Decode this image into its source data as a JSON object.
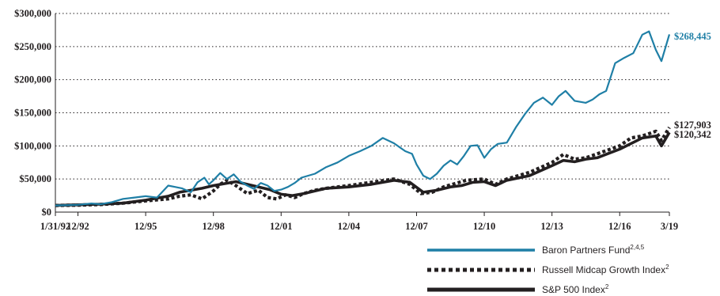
{
  "colors": {
    "fund": "#1f7fa6",
    "index": "#231f20",
    "grid": "#231f20"
  },
  "chart_data": {
    "type": "line",
    "title": "",
    "xlabel": "",
    "ylabel": "",
    "ylim": [
      0,
      300000
    ],
    "xlim": [
      1992.0,
      2019.2
    ],
    "grid": "horizontal dotted",
    "legend_position": "bottom-right",
    "y_ticks": [
      {
        "value": 0,
        "label": "$0"
      },
      {
        "value": 50000,
        "label": "$50,000"
      },
      {
        "value": 100000,
        "label": "$100,000"
      },
      {
        "value": 150000,
        "label": "$150,000"
      },
      {
        "value": 200000,
        "label": "$200,000"
      },
      {
        "value": 250000,
        "label": "$250,000"
      },
      {
        "value": 300000,
        "label": "$300,000"
      }
    ],
    "x_ticks": [
      {
        "value": 1992.0,
        "label": "1/31/92"
      },
      {
        "value": 1993.0,
        "label": "12/92"
      },
      {
        "value": 1996.0,
        "label": "12/95"
      },
      {
        "value": 1999.0,
        "label": "12/98"
      },
      {
        "value": 2002.0,
        "label": "12/01"
      },
      {
        "value": 2005.0,
        "label": "12/04"
      },
      {
        "value": 2008.0,
        "label": "12/07"
      },
      {
        "value": 2011.0,
        "label": "12/10"
      },
      {
        "value": 2014.0,
        "label": "12/13"
      },
      {
        "value": 2017.0,
        "label": "12/16"
      },
      {
        "value": 2019.2,
        "label": "3/19"
      }
    ],
    "end_labels": {
      "fund": "$268,445",
      "russell": "$127,903",
      "sp500": "$120,342"
    },
    "series": [
      {
        "name": "Baron Partners Fund",
        "sup": "2,4,5",
        "style": "fund",
        "x": [
          1992.0,
          1993.0,
          1993.6,
          1994.0,
          1994.5,
          1995.0,
          1995.5,
          1996.0,
          1996.5,
          1997.0,
          1997.3,
          1997.6,
          1998.0,
          1998.3,
          1998.6,
          1998.8,
          1999.0,
          1999.3,
          1999.6,
          1999.9,
          2000.2,
          2000.5,
          2000.8,
          2001.1,
          2001.4,
          2001.7,
          2002.0,
          2002.3,
          2002.6,
          2002.9,
          2003.2,
          2003.5,
          2004.0,
          2004.5,
          2005.0,
          2005.5,
          2006.0,
          2006.5,
          2007.0,
          2007.5,
          2007.8,
          2008.0,
          2008.3,
          2008.6,
          2008.9,
          2009.2,
          2009.5,
          2009.8,
          2010.1,
          2010.4,
          2010.7,
          2011.0,
          2011.3,
          2011.6,
          2012.0,
          2012.4,
          2012.8,
          2013.2,
          2013.6,
          2014.0,
          2014.3,
          2014.6,
          2015.0,
          2015.5,
          2015.8,
          2016.1,
          2016.4,
          2016.8,
          2017.2,
          2017.6,
          2018.0,
          2018.3,
          2018.6,
          2018.85,
          2019.2
        ],
        "values": [
          10000,
          11000,
          13000,
          12000,
          15000,
          20000,
          22000,
          24000,
          22000,
          40000,
          38000,
          36000,
          30000,
          45000,
          52000,
          42000,
          48000,
          59000,
          50000,
          57000,
          46000,
          40000,
          35000,
          44000,
          40000,
          32000,
          34000,
          38000,
          44000,
          52000,
          55000,
          58000,
          68000,
          75000,
          85000,
          92000,
          100000,
          112000,
          104000,
          92000,
          88000,
          72000,
          55000,
          50000,
          58000,
          70000,
          78000,
          72000,
          85000,
          100000,
          101000,
          82000,
          95000,
          103000,
          105000,
          128000,
          148000,
          165000,
          173000,
          162000,
          175000,
          183000,
          168000,
          165000,
          170000,
          178000,
          183000,
          225000,
          233000,
          240000,
          268000,
          273000,
          245000,
          228000,
          268445
        ]
      },
      {
        "name": "Russell Midcap Growth Index",
        "sup": "2",
        "style": "dotted",
        "x": [
          1992.0,
          1993.0,
          1994.0,
          1995.0,
          1996.0,
          1997.0,
          1997.5,
          1998.0,
          1998.5,
          1999.0,
          1999.3,
          1999.6,
          2000.0,
          2000.5,
          2001.0,
          2001.4,
          2001.8,
          2002.2,
          2002.6,
          2003.0,
          2003.5,
          2004.0,
          2005.0,
          2006.0,
          2007.0,
          2007.7,
          2008.2,
          2008.7,
          2009.2,
          2009.7,
          2010.2,
          2011.0,
          2011.5,
          2012.0,
          2013.0,
          2014.0,
          2014.5,
          2015.0,
          2015.5,
          2016.0,
          2017.0,
          2017.5,
          2018.0,
          2018.6,
          2018.85,
          2019.2
        ],
        "values": [
          10000,
          10500,
          11500,
          13500,
          17000,
          20000,
          24000,
          26000,
          20000,
          32000,
          42000,
          48000,
          40000,
          28000,
          33000,
          22000,
          20000,
          26000,
          22000,
          28000,
          33000,
          36000,
          40000,
          45000,
          50000,
          42000,
          28000,
          30000,
          38000,
          43000,
          48000,
          50000,
          42000,
          50000,
          60000,
          75000,
          87000,
          80000,
          82000,
          88000,
          100000,
          112000,
          115000,
          122000,
          108000,
          127903
        ]
      },
      {
        "name": "S&P 500 Index",
        "sup": "2",
        "style": "solid",
        "x": [
          1992.0,
          1993.0,
          1994.0,
          1995.0,
          1996.0,
          1997.0,
          1997.5,
          1998.0,
          1998.5,
          1999.0,
          1999.5,
          2000.0,
          2000.5,
          2001.0,
          2001.5,
          2002.0,
          2002.5,
          2003.0,
          2003.5,
          2004.0,
          2005.0,
          2006.0,
          2007.0,
          2007.7,
          2008.3,
          2008.9,
          2009.5,
          2010.0,
          2010.5,
          2011.0,
          2011.5,
          2012.0,
          2013.0,
          2014.0,
          2014.5,
          2015.0,
          2015.5,
          2016.0,
          2017.0,
          2018.0,
          2018.6,
          2018.85,
          2019.2
        ],
        "values": [
          10000,
          11000,
          12000,
          13500,
          18000,
          24000,
          30000,
          33000,
          36000,
          40000,
          43000,
          46000,
          42000,
          38000,
          34000,
          27000,
          25000,
          28000,
          32000,
          36000,
          38000,
          42000,
          48000,
          45000,
          30000,
          33000,
          38000,
          40000,
          45000,
          46000,
          40000,
          48000,
          55000,
          70000,
          78000,
          76000,
          80000,
          82000,
          95000,
          112000,
          115000,
          100000,
          120342
        ]
      }
    ]
  }
}
